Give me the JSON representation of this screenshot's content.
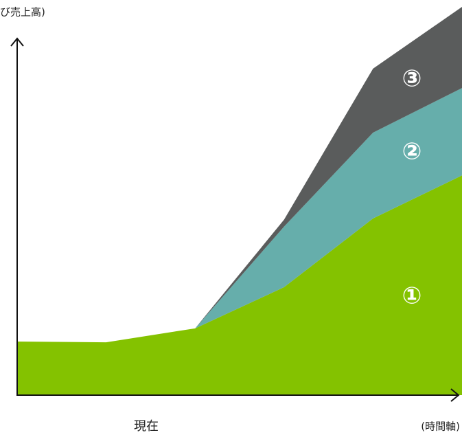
{
  "chart_data": {
    "type": "stacked_area",
    "y_label": "び売上高)",
    "x_annotation": "現在",
    "x_label": "(時間軸)",
    "x": [
      0,
      1,
      2,
      3,
      4,
      5
    ],
    "xlim": [
      0,
      5
    ],
    "ylim": [
      0,
      100
    ],
    "series": [
      {
        "name": "①",
        "color": "#84c200",
        "values": [
          13.8,
          13.6,
          17.2,
          27.8,
          45.5,
          56.6
        ]
      },
      {
        "name": "②",
        "color": "#66aeab",
        "values": [
          0,
          0,
          0,
          15.6,
          22.1,
          22.5
        ]
      },
      {
        "name": "③",
        "color": "#5a5c5c",
        "values": [
          0,
          0,
          0,
          1.8,
          16.5,
          20.9
        ]
      }
    ]
  }
}
